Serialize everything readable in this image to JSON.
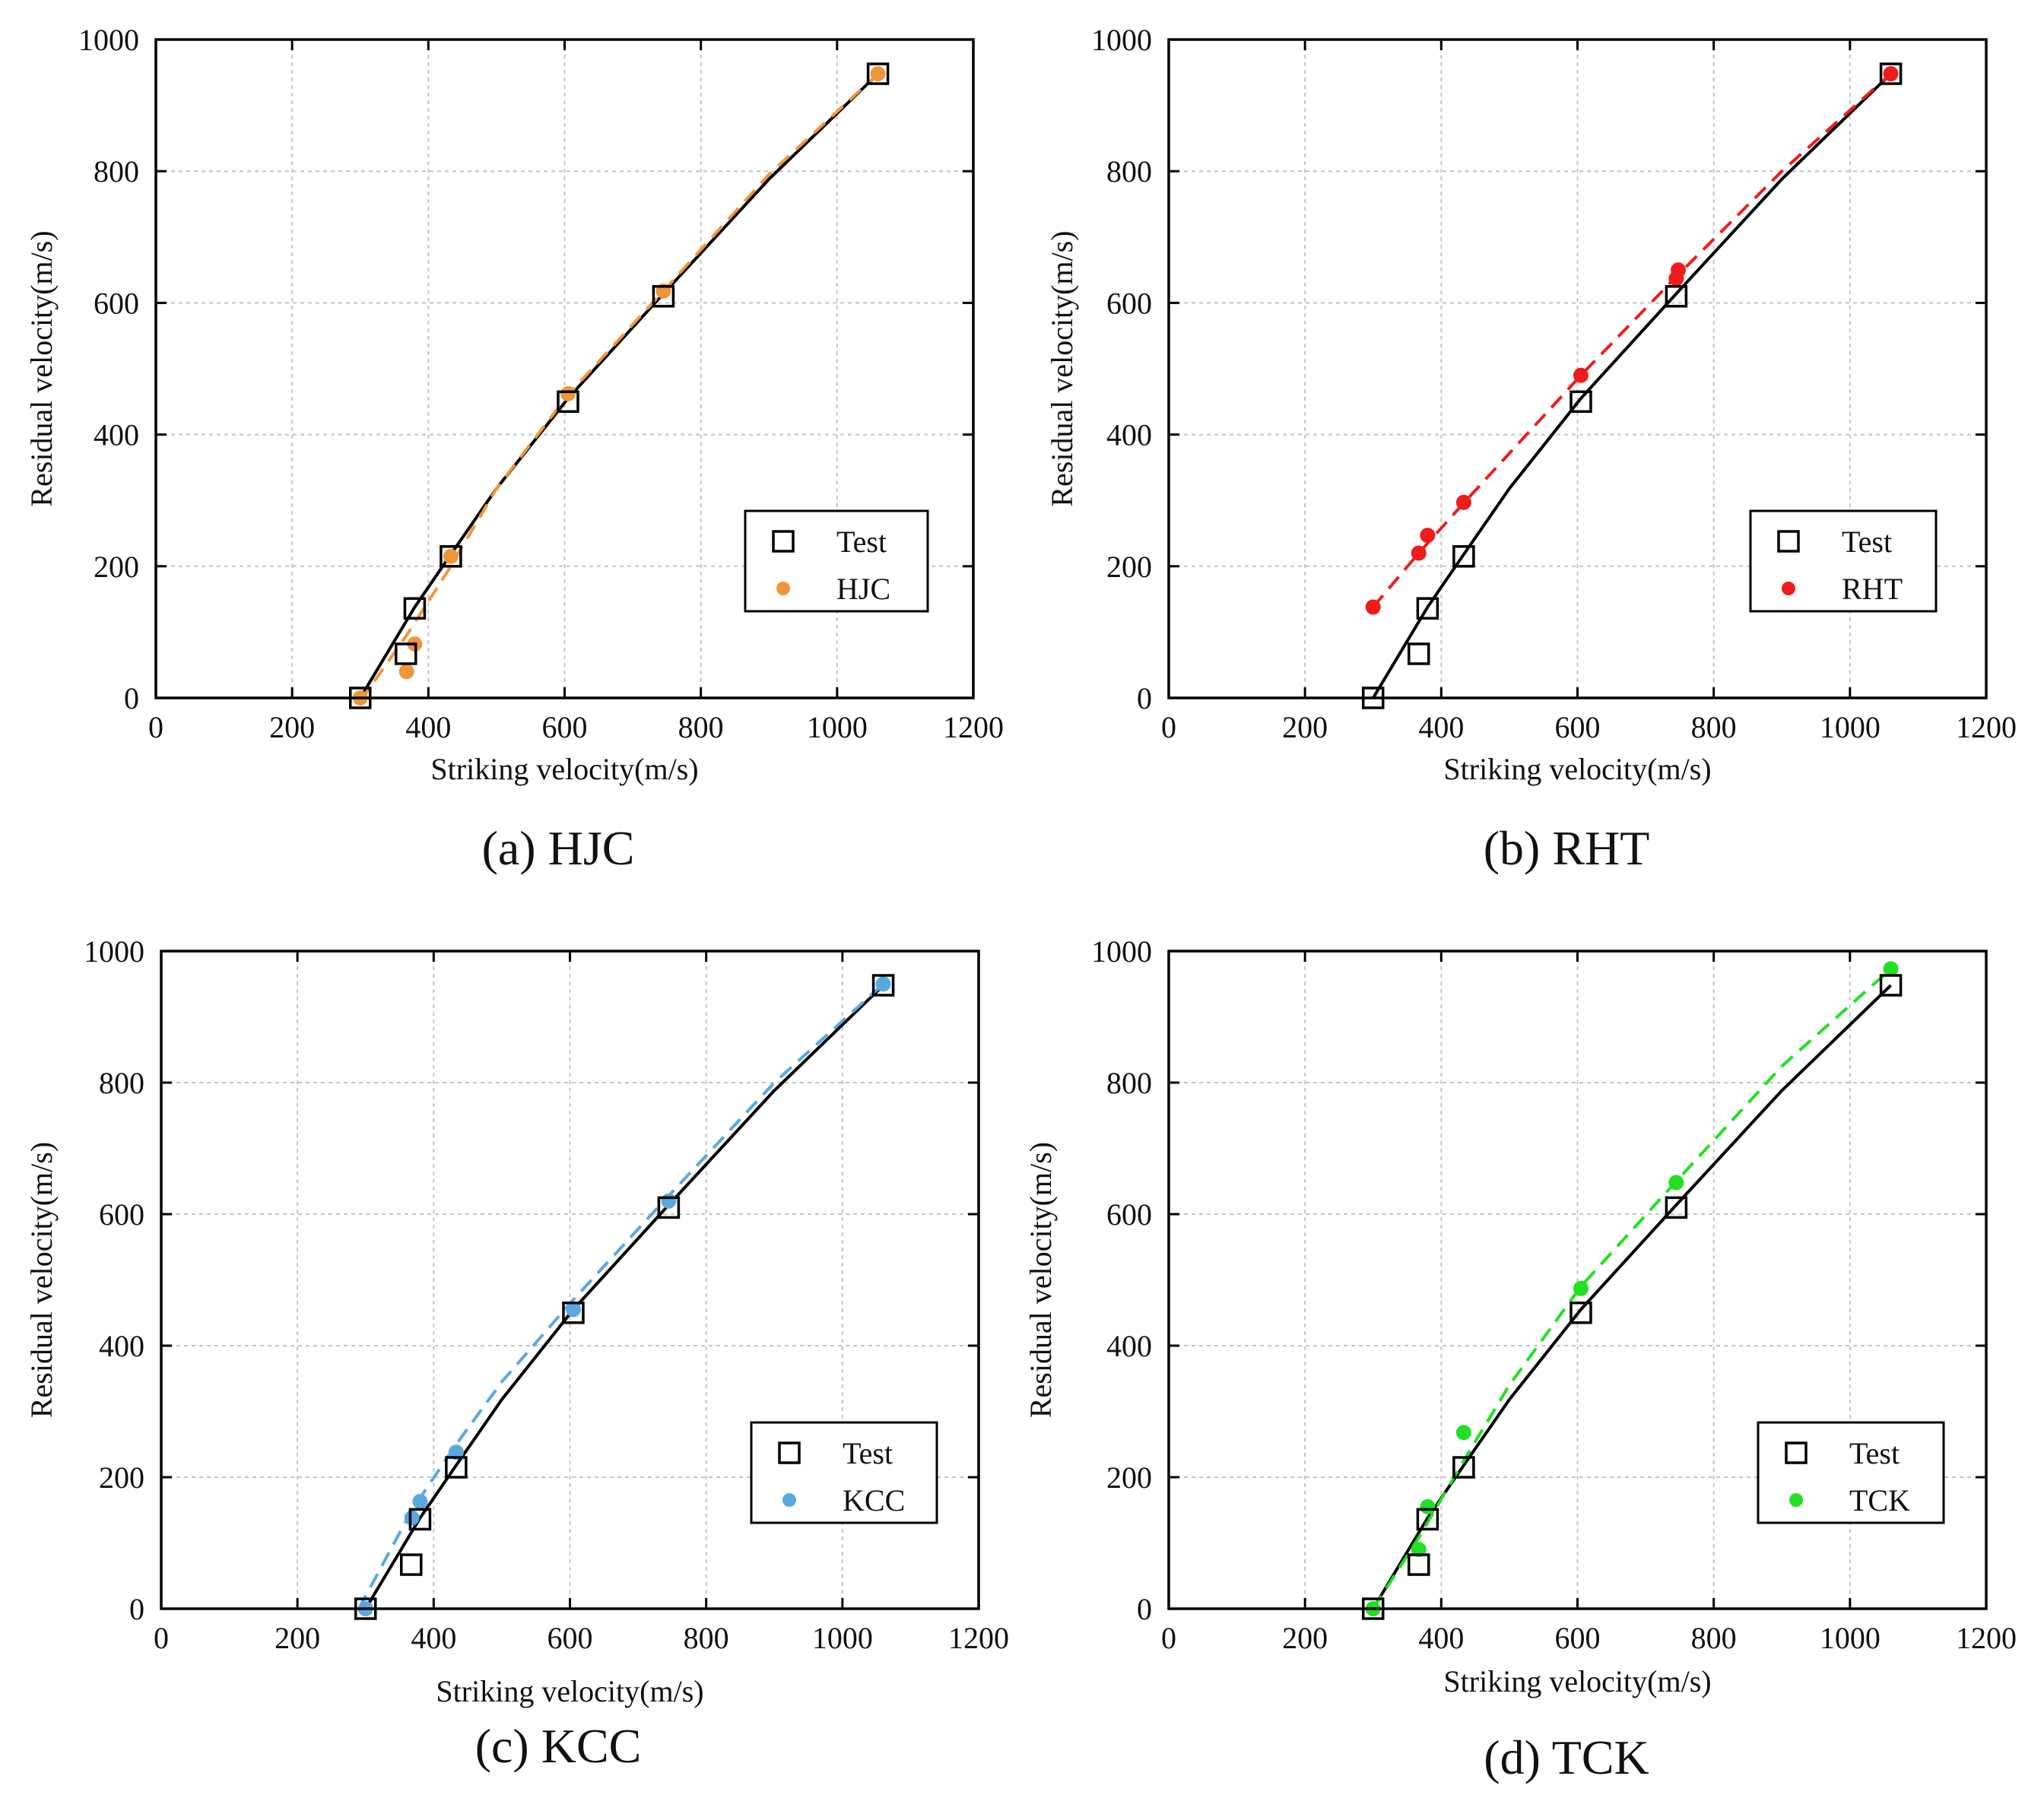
{
  "chart_data": [
    {
      "id": "hjc",
      "type": "line",
      "caption": "(a) HJC",
      "xlabel": "Striking velocity(m/s)",
      "ylabel": "Residual velocity(m/s)",
      "xlim": [
        0,
        1200
      ],
      "ylim": [
        0,
        1000
      ],
      "xticks": [
        "0",
        "200",
        "400",
        "600",
        "800",
        "1000",
        "1200"
      ],
      "yticks": [
        "0",
        "200",
        "400",
        "600",
        "800",
        "1000"
      ],
      "grid": true,
      "legend_position": "lower-right",
      "series": [
        {
          "name": "Test",
          "marker": "open-square",
          "color": "#000000",
          "line": "solid",
          "x": [
            300,
            367,
            380,
            433,
            605,
            745,
            1060
          ],
          "y": [
            0,
            67,
            136,
            215,
            450,
            610,
            948
          ],
          "curve_x": [
            300,
            380,
            433,
            500,
            605,
            745,
            900,
            1060
          ],
          "curve_y": [
            0,
            138,
            218,
            318,
            455,
            614,
            788,
            948
          ]
        },
        {
          "name": "HJC",
          "marker": "filled-circle",
          "color": "#F0963A",
          "line": "dashed",
          "x": [
            300,
            368,
            380,
            433,
            605,
            745,
            1060
          ],
          "y": [
            0,
            40,
            82,
            215,
            462,
            618,
            948
          ],
          "curve_x": [
            300,
            368,
            433,
            500,
            605,
            745,
            900,
            1060
          ],
          "curve_y": [
            -5,
            95,
            200,
            318,
            460,
            618,
            795,
            948
          ]
        }
      ]
    },
    {
      "id": "rht",
      "type": "line",
      "caption": "(b) RHT",
      "xlabel": "Striking velocity(m/s)",
      "ylabel": "Residual velocity(m/s)",
      "xlim": [
        0,
        1200
      ],
      "ylim": [
        0,
        1000
      ],
      "xticks": [
        "0",
        "200",
        "400",
        "600",
        "800",
        "1000",
        "1200"
      ],
      "yticks": [
        "0",
        "200",
        "400",
        "600",
        "800",
        "1000"
      ],
      "grid": true,
      "legend_position": "lower-right",
      "series": [
        {
          "name": "Test",
          "marker": "open-square",
          "color": "#000000",
          "line": "solid",
          "x": [
            300,
            367,
            380,
            433,
            605,
            745,
            1060
          ],
          "y": [
            0,
            67,
            136,
            215,
            450,
            610,
            948
          ],
          "curve_x": [
            300,
            380,
            433,
            500,
            605,
            745,
            900,
            1060
          ],
          "curve_y": [
            0,
            138,
            218,
            318,
            455,
            614,
            788,
            948
          ]
        },
        {
          "name": "RHT",
          "marker": "filled-circle",
          "color": "#EE1C1C",
          "line": "dashed",
          "x": [
            300,
            367,
            380,
            433,
            605,
            745,
            748,
            1060
          ],
          "y": [
            138,
            220,
            247,
            297,
            490,
            637,
            650,
            948
          ],
          "curve_x": [
            300,
            367,
            433,
            605,
            745,
            900,
            1060
          ],
          "curve_y": [
            138,
            220,
            296,
            490,
            640,
            800,
            948
          ]
        }
      ]
    },
    {
      "id": "kcc",
      "type": "line",
      "caption": "(c) KCC",
      "xlabel": "Striking velocity(m/s)",
      "ylabel": "Residual velocity(m/s)",
      "xlim": [
        0,
        1200
      ],
      "ylim": [
        0,
        1000
      ],
      "xticks": [
        "0",
        "200",
        "400",
        "600",
        "800",
        "1000",
        "1200"
      ],
      "yticks": [
        "0",
        "200",
        "400",
        "600",
        "800",
        "1000"
      ],
      "grid": true,
      "legend_position": "lower-right",
      "series": [
        {
          "name": "Test",
          "marker": "open-square",
          "color": "#000000",
          "line": "solid",
          "x": [
            300,
            367,
            380,
            433,
            605,
            745,
            1060
          ],
          "y": [
            0,
            67,
            136,
            215,
            450,
            610,
            948
          ],
          "curve_x": [
            300,
            380,
            433,
            500,
            605,
            745,
            900,
            1060
          ],
          "curve_y": [
            0,
            138,
            218,
            318,
            455,
            614,
            788,
            948
          ]
        },
        {
          "name": "KCC",
          "marker": "filled-circle",
          "color": "#5AA8E0",
          "line": "dashed",
          "x": [
            300,
            368,
            380,
            433,
            605,
            745,
            1060
          ],
          "y": [
            0,
            138,
            163,
            238,
            455,
            620,
            950
          ],
          "curve_x": [
            290,
            368,
            433,
            500,
            605,
            745,
            900,
            1060
          ],
          "curve_y": [
            0,
            150,
            250,
            345,
            470,
            628,
            800,
            950
          ]
        }
      ]
    },
    {
      "id": "tck",
      "type": "line",
      "caption": "(d) TCK",
      "xlabel": "Striking velocity(m/s)",
      "ylabel": "Residual velocity(m/s)",
      "xlim": [
        0,
        1200
      ],
      "ylim": [
        0,
        1000
      ],
      "xticks": [
        "0",
        "200",
        "400",
        "600",
        "800",
        "1000",
        "1200"
      ],
      "yticks": [
        "0",
        "200",
        "400",
        "600",
        "800",
        "1000"
      ],
      "grid": true,
      "legend_position": "lower-right",
      "series": [
        {
          "name": "Test",
          "marker": "open-square",
          "color": "#000000",
          "line": "solid",
          "x": [
            300,
            367,
            380,
            433,
            605,
            745,
            1060
          ],
          "y": [
            0,
            67,
            136,
            215,
            450,
            610,
            948
          ],
          "curve_x": [
            300,
            380,
            433,
            500,
            605,
            745,
            900,
            1060
          ],
          "curve_y": [
            0,
            138,
            218,
            318,
            455,
            614,
            788,
            948
          ]
        },
        {
          "name": "TCK",
          "marker": "filled-circle",
          "color": "#22E022",
          "line": "dashed",
          "x": [
            300,
            367,
            380,
            433,
            605,
            745,
            1060
          ],
          "y": [
            0,
            90,
            155,
            268,
            487,
            648,
            973
          ],
          "curve_x": [
            300,
            367,
            433,
            500,
            605,
            745,
            900,
            1060
          ],
          "curve_y": [
            0,
            108,
            225,
            340,
            490,
            650,
            825,
            973
          ]
        }
      ]
    }
  ]
}
